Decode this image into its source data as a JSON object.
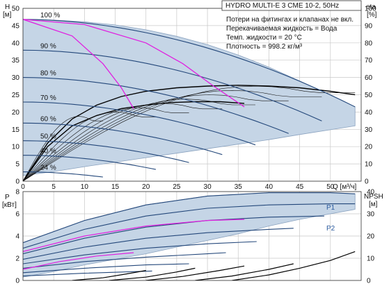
{
  "chart_data": [
    {
      "type": "line",
      "title": "HYDRO MULTI-E 3 CME 10-2, 50Hz",
      "info_lines": [
        "Потери на фитингах и клапанах не вкл.",
        "Перекачиваемая жидкость = Вода",
        "Темп. жидкости = 20 °C",
        "Плотность = 998.2 кг/м³"
      ],
      "ylabel": [
        "H",
        "[м]"
      ],
      "y2label": [
        "eta",
        "[%]"
      ],
      "xlabel": "Q [м³/ч]",
      "xlim": [
        0,
        55
      ],
      "ylim": [
        0,
        50
      ],
      "y2lim": [
        0,
        100
      ],
      "x_ticks": [
        "0",
        "5",
        "10",
        "15",
        "20",
        "25",
        "30",
        "35",
        "40",
        "45",
        "50"
      ],
      "y_ticks": [
        "0",
        "5",
        "10",
        "15",
        "20",
        "25",
        "30",
        "35",
        "40",
        "45",
        "50"
      ],
      "y2_ticks": [
        "0",
        "10",
        "20",
        "30",
        "40",
        "50",
        "60",
        "70",
        "80",
        "90",
        "100"
      ],
      "grid": true,
      "envelope": {
        "x": [
          0,
          5,
          10,
          15,
          20,
          25,
          30,
          35,
          40,
          45,
          50,
          54,
          54,
          45,
          40,
          35,
          30,
          25,
          20,
          15,
          10,
          5,
          0
        ],
        "y": [
          46.8,
          46.6,
          46.1,
          45.2,
          43.8,
          41.9,
          39.5,
          36.5,
          33.0,
          29.0,
          25.0,
          21.5,
          16.0,
          13.5,
          12.0,
          10.7,
          9.4,
          8.1,
          6.8,
          5.5,
          4.2,
          2.8,
          1.6
        ]
      },
      "speed_curves": [
        {
          "label": "100 %",
          "h0": 46.8,
          "qmax": 54,
          "hend": 21.5
        },
        {
          "label": "90 %",
          "h0": 37.9,
          "qmax": 48.6,
          "hend": 17.4
        },
        {
          "label": "80 %",
          "h0": 30.0,
          "qmax": 43.2,
          "hend": 13.8
        },
        {
          "label": "70 %",
          "h0": 22.9,
          "qmax": 37.8,
          "hend": 10.5
        },
        {
          "label": "60 %",
          "h0": 16.8,
          "qmax": 32.4,
          "hend": 7.7
        },
        {
          "label": "50 %",
          "h0": 11.7,
          "qmax": 27.0,
          "hend": 5.4
        },
        {
          "label": "40 %",
          "h0": 7.5,
          "qmax": 21.6,
          "hend": 3.4
        },
        {
          "label": "24 %",
          "h0": 2.7,
          "qmax": 13.0,
          "hend": 1.2
        }
      ],
      "magenta_curves": [
        {
          "x": [
            0,
            8,
            13,
            16,
            18
          ],
          "y": [
            46.8,
            42,
            34,
            27,
            21
          ]
        },
        {
          "x": [
            0,
            10,
            20,
            26,
            31,
            36
          ],
          "y": [
            46.8,
            45.3,
            40,
            34,
            27.5,
            21.5
          ]
        }
      ],
      "eta_curves": [
        {
          "x": [
            0,
            4,
            8,
            12,
            16,
            20,
            25,
            30,
            35,
            40,
            45,
            50,
            54
          ],
          "y": [
            0,
            22,
            36,
            44,
            49,
            52,
            54,
            55,
            55.5,
            55,
            54,
            52,
            50
          ]
        },
        {
          "x": [
            0,
            4,
            8,
            12,
            16,
            20,
            24,
            28,
            32,
            36
          ],
          "y": [
            0,
            20,
            32,
            38,
            42,
            44,
            45.5,
            46,
            46,
            45
          ]
        }
      ]
    },
    {
      "type": "line",
      "ylabel": [
        "P",
        "[кВт]"
      ],
      "y2label": [
        "NPSH",
        "[м]"
      ],
      "xlim": [
        0,
        55
      ],
      "ylim": [
        0,
        8
      ],
      "y2lim": [
        0,
        40
      ],
      "y_ticks": [
        "0",
        "2",
        "4",
        "6",
        "8"
      ],
      "y2_ticks": [
        "0",
        "10",
        "20",
        "30",
        "40"
      ],
      "grid": true,
      "series_labels": [
        "P1",
        "P2"
      ],
      "envelope": {
        "x": [
          0,
          10,
          20,
          30,
          40,
          50,
          54,
          54,
          45,
          40,
          35,
          30,
          25,
          20,
          15,
          10,
          5,
          0
        ],
        "y": [
          3.4,
          5.4,
          6.8,
          7.6,
          7.9,
          7.9,
          7.8,
          6.4,
          5.5,
          4.9,
          4.2,
          3.6,
          3.0,
          2.4,
          1.9,
          1.4,
          0.8,
          0.3
        ]
      },
      "power_curves": [
        {
          "x": [
            0,
            10,
            20,
            30,
            40,
            50,
            54
          ],
          "y": [
            3.4,
            5.4,
            6.8,
            7.6,
            7.9,
            7.9,
            7.8
          ]
        },
        {
          "x": [
            0,
            10,
            20,
            30,
            40,
            50,
            54
          ],
          "y": [
            2.9,
            4.6,
            5.8,
            6.5,
            6.8,
            6.9,
            6.9
          ]
        },
        {
          "x": [
            0,
            10,
            20,
            30,
            40,
            49
          ],
          "y": [
            2.4,
            3.8,
            4.8,
            5.4,
            5.7,
            5.8
          ]
        },
        {
          "x": [
            0,
            10,
            20,
            30,
            40,
            44
          ],
          "y": [
            1.9,
            3.0,
            3.8,
            4.3,
            4.6,
            4.7
          ]
        },
        {
          "x": [
            0,
            10,
            20,
            30,
            38
          ],
          "y": [
            1.5,
            2.3,
            2.9,
            3.3,
            3.5
          ]
        },
        {
          "x": [
            0,
            10,
            20,
            30,
            33
          ],
          "y": [
            1.1,
            1.7,
            2.1,
            2.4,
            2.5
          ]
        },
        {
          "x": [
            0,
            10,
            20,
            27
          ],
          "y": [
            0.7,
            1.1,
            1.4,
            1.5
          ]
        },
        {
          "x": [
            0,
            10,
            21
          ],
          "y": [
            0.4,
            0.65,
            0.85
          ]
        }
      ],
      "magenta_curves": [
        {
          "x": [
            0,
            10,
            20,
            30,
            36
          ],
          "y": [
            2.6,
            4.0,
            4.9,
            5.4,
            5.5
          ]
        },
        {
          "x": [
            0,
            6,
            12,
            18
          ],
          "y": [
            1.0,
            1.7,
            2.2,
            2.5
          ]
        }
      ],
      "npsh_curves": [
        {
          "x": [
            34,
            40,
            45,
            50,
            54
          ],
          "y": [
            0,
            2.5,
            5.5,
            9,
            13
          ]
        },
        {
          "x": [
            28,
            34,
            40,
            44
          ],
          "y": [
            0,
            2.0,
            5.0,
            7.5
          ]
        },
        {
          "x": [
            20,
            26,
            32,
            36
          ],
          "y": [
            0,
            1.8,
            4.5,
            6.5
          ]
        },
        {
          "x": [
            14,
            20,
            25,
            28
          ],
          "y": [
            0,
            1.5,
            3.8,
            5.5
          ]
        },
        {
          "x": [
            8,
            13,
            17,
            20
          ],
          "y": [
            0,
            1.2,
            3.0,
            4.5
          ]
        }
      ]
    }
  ]
}
